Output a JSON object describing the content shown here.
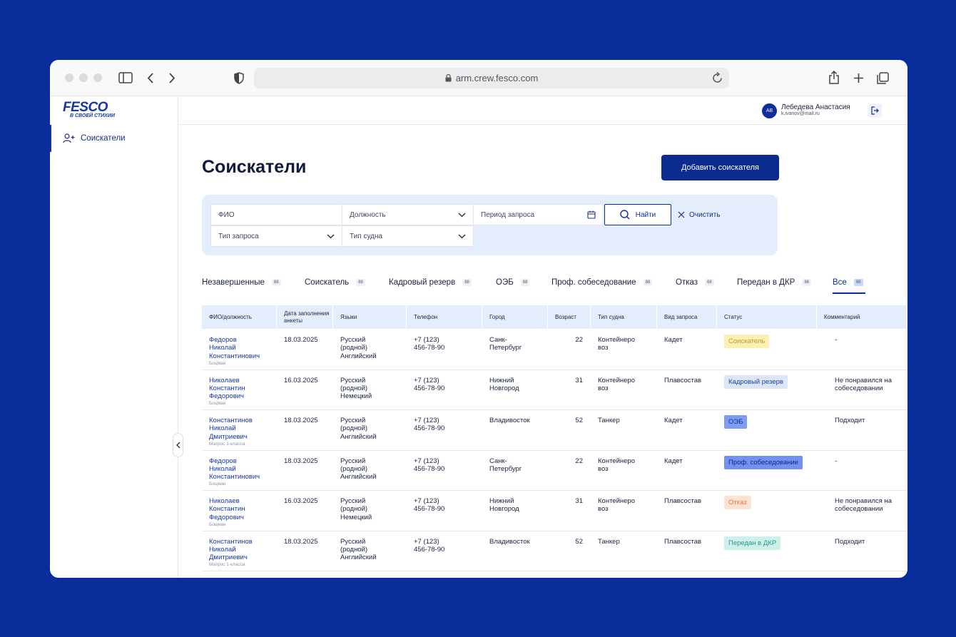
{
  "browser": {
    "url": "arm.crew.fesco.com"
  },
  "sidebar": {
    "logo": "FESCO",
    "tagline": "В СВОЕЙ СТИХИИ",
    "nav": [
      "Соискатели"
    ]
  },
  "user": {
    "initials": "АВ",
    "name": "Лебедева Анастасия",
    "email": "k.ivanov@mail.ru"
  },
  "page": {
    "title": "Соискатели",
    "add_button": "Добавить соискателя"
  },
  "filters": {
    "fio": "ФИО",
    "position": "Должность",
    "period": "Период запроса",
    "request_type": "Тип запроса",
    "ship_type": "Тип судна",
    "search": "Найти",
    "clear": "Очистить"
  },
  "tabs": [
    {
      "label": "Незавершенные",
      "count": 88
    },
    {
      "label": "Соискатель",
      "count": 88
    },
    {
      "label": "Кадровый резерв",
      "count": 88
    },
    {
      "label": "ОЭБ",
      "count": 88
    },
    {
      "label": "Проф. собеседование",
      "count": 88
    },
    {
      "label": "Отказ",
      "count": 88
    },
    {
      "label": "Передан в ДКР",
      "count": 88
    },
    {
      "label": "Все",
      "count": 88
    }
  ],
  "table": {
    "headers": [
      "ФИО/должность",
      "Дата заполнения анкеты",
      "Языки",
      "Телефон",
      "Город",
      "Возраст",
      "Тип судна",
      "Вид запроса",
      "Статус",
      "Комментарий"
    ],
    "rows": [
      {
        "name": [
          "Федоров",
          "Николай",
          "Константинович"
        ],
        "position": "Боцман",
        "date": "18.03.2025",
        "languages": [
          "Русский",
          "(родной)",
          "Английский"
        ],
        "phone": [
          "+7 (123)",
          "456-78-90"
        ],
        "city": [
          "Санк-",
          "Петербург"
        ],
        "age": 22,
        "ship": [
          "Контейнеро",
          "воз"
        ],
        "request": "Кадет",
        "status": "Соискатель",
        "comment": [
          "-"
        ]
      },
      {
        "name": [
          "Николаев",
          "Константин",
          "Федорович"
        ],
        "position": "Боцман",
        "date": "16.03.2025",
        "languages": [
          "Русский",
          "(родной)",
          "Немецкий"
        ],
        "phone": [
          "+7 (123)",
          "456-78-90"
        ],
        "city": [
          "Нижний",
          "Новгород"
        ],
        "age": 31,
        "ship": [
          "Контейнеро",
          "воз"
        ],
        "request": "Плавсостав",
        "status": "Кадровый резерв",
        "comment": [
          "Не понравился на",
          "собеседовании"
        ]
      },
      {
        "name": [
          "Константинов",
          "Николай",
          "Дмитриевич"
        ],
        "position": "Матрос 1-класса",
        "date": "18.03.2025",
        "languages": [
          "Русский",
          "(родной)",
          "Английский"
        ],
        "phone": [
          "+7 (123)",
          "456-78-90"
        ],
        "city": [
          "Владивосток"
        ],
        "age": 52,
        "ship": [
          "Танкер"
        ],
        "request": "Кадет",
        "status": "ОЭБ",
        "comment": [
          "Подходит"
        ]
      },
      {
        "name": [
          "Федоров",
          "Николай",
          "Константинович"
        ],
        "position": "Боцман",
        "date": "18.03.2025",
        "languages": [
          "Русский",
          "(родной)",
          "Английский"
        ],
        "phone": [
          "+7 (123)",
          "456-78-90"
        ],
        "city": [
          "Санк-",
          "Петербург"
        ],
        "age": 22,
        "ship": [
          "Контейнеро",
          "воз"
        ],
        "request": "Кадет",
        "status": "Проф. собеседование",
        "comment": [
          "-"
        ]
      },
      {
        "name": [
          "Николаев",
          "Константин",
          "Федорович"
        ],
        "position": "Боцман",
        "date": "16.03.2025",
        "languages": [
          "Русский",
          "(родной)",
          "Немецкий"
        ],
        "phone": [
          "+7 (123)",
          "456-78-90"
        ],
        "city": [
          "Нижний",
          "Новгород"
        ],
        "age": 31,
        "ship": [
          "Контейнеро",
          "воз"
        ],
        "request": "Плавсостав",
        "status": "Отказ",
        "comment": [
          "Не понравился на",
          "собеседовании"
        ]
      },
      {
        "name": [
          "Константинов",
          "Николай",
          "Дмитриевич"
        ],
        "position": "Матрос 1-класса",
        "date": "18.03.2025",
        "languages": [
          "Русский",
          "(родной)",
          "Английский"
        ],
        "phone": [
          "+7 (123)",
          "456-78-90"
        ],
        "city": [
          "Владивосток"
        ],
        "age": 52,
        "ship": [
          "Танкер"
        ],
        "request": "Плавсостав",
        "status": "Передан в ДКР",
        "comment": [
          "Подходит"
        ]
      }
    ]
  }
}
